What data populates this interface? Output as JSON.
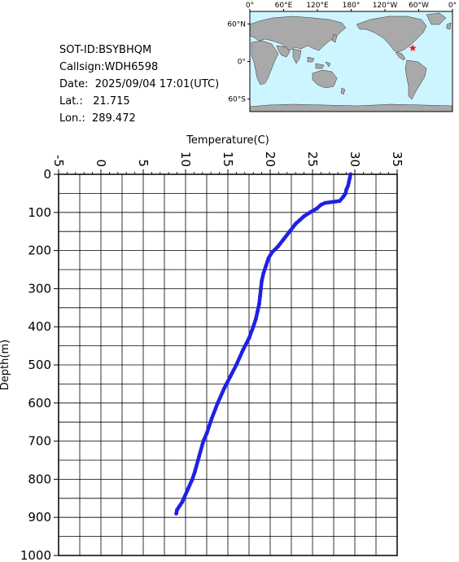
{
  "info": {
    "sot_id": "SOT-ID:BSYBHQM",
    "callsign": "Callsign:WDH6598",
    "date": "Date:  2025/09/04 17:01(UTC)",
    "lat": "Lat.:   21.715",
    "lon": "Lon.:  289.472"
  },
  "map": {
    "lon_labels": [
      "0°",
      "60°E",
      "120°E",
      "180°",
      "120°W",
      "60°W",
      "0°"
    ],
    "lat_labels": [
      "60°N",
      "0°",
      "60°S"
    ],
    "ocean_color": "#cdf5ff",
    "land_color": "#a9a9a9",
    "marker_color": "#ff0000",
    "marker": {
      "lon": 289.472,
      "lat": 21.715
    }
  },
  "chart_data": {
    "type": "line",
    "xlabel": "Temperature(C)",
    "ylabel": "Depth(m)",
    "xlim": [
      -5,
      35
    ],
    "ylim": [
      0,
      1000
    ],
    "x_ticks": [
      "-5",
      "0",
      "5",
      "10",
      "15",
      "20",
      "25",
      "30",
      "35"
    ],
    "y_ticks": [
      "0",
      "100",
      "200",
      "300",
      "400",
      "500",
      "600",
      "700",
      "800",
      "900",
      "1000"
    ],
    "grid": true,
    "line_color": "#2020e8",
    "series": [
      {
        "depth": [
          0,
          10,
          20,
          30,
          40,
          50,
          60,
          70,
          75,
          80,
          90,
          100,
          110,
          120,
          130,
          150,
          170,
          190,
          205,
          220,
          240,
          260,
          280,
          300,
          320,
          340,
          360,
          380,
          400,
          430,
          460,
          500,
          530,
          560,
          600,
          640,
          680,
          700,
          740,
          780,
          800,
          830,
          860,
          870,
          880,
          890
        ],
        "temperature": [
          29.5,
          29.4,
          29.3,
          29.2,
          29.0,
          28.9,
          28.6,
          28.2,
          26.5,
          26.0,
          25.5,
          24.7,
          24.0,
          23.5,
          23.0,
          22.3,
          21.6,
          20.9,
          20.2,
          19.8,
          19.5,
          19.2,
          19.0,
          18.9,
          18.8,
          18.7,
          18.5,
          18.3,
          18.0,
          17.5,
          16.8,
          16.0,
          15.3,
          14.6,
          13.8,
          13.1,
          12.5,
          12.1,
          11.6,
          11.1,
          10.8,
          10.2,
          9.6,
          9.3,
          9.0,
          8.9
        ]
      }
    ]
  }
}
